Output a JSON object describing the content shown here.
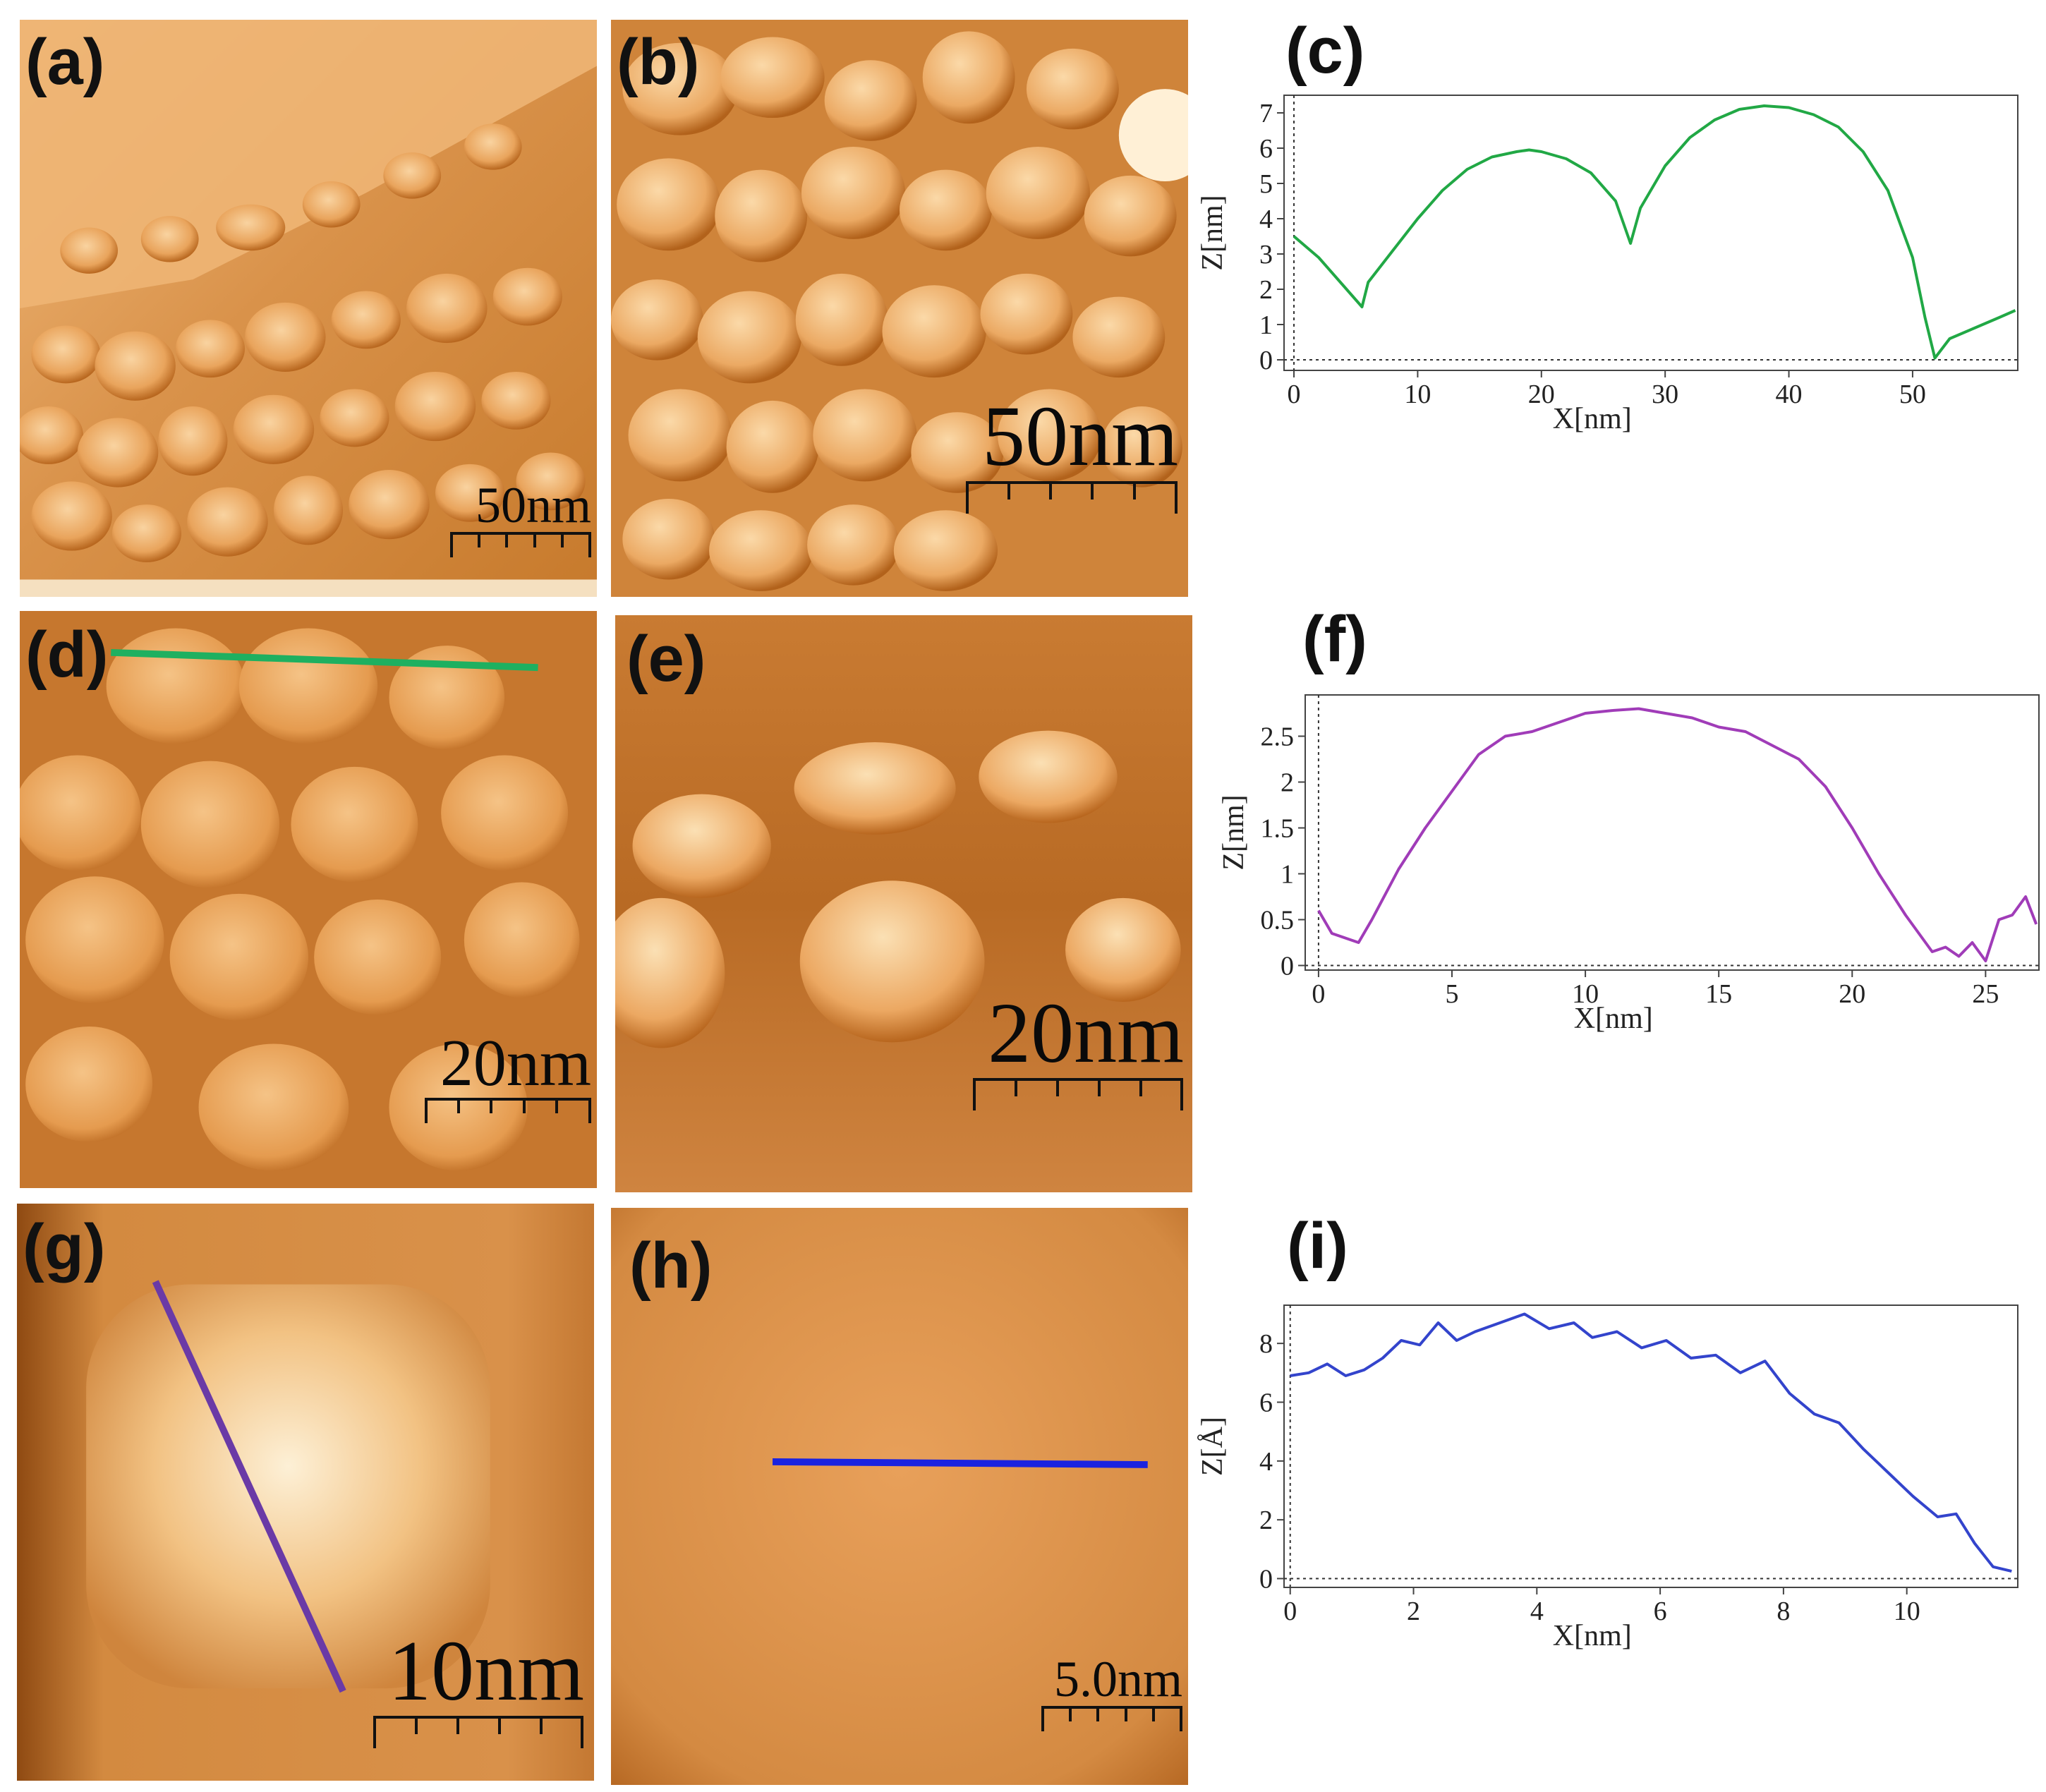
{
  "figure": {
    "panels": [
      {
        "id": "a",
        "label": "(a)",
        "scale_text": "50nm"
      },
      {
        "id": "b",
        "label": "(b)",
        "scale_text": "50nm"
      },
      {
        "id": "d",
        "label": "(d)",
        "scale_text": "20nm",
        "profile_line_color": "#1eb060"
      },
      {
        "id": "e",
        "label": "(e)",
        "scale_text": "20nm"
      },
      {
        "id": "g",
        "label": "(g)",
        "scale_text": "10nm",
        "profile_line_color": "#6a3aa6"
      },
      {
        "id": "h",
        "label": "(h)",
        "scale_text": "5.0nm",
        "profile_line_color": "#1a23e0"
      }
    ],
    "afm_colors": {
      "dark": "#8a4a0f",
      "mid": "#d68a3c",
      "light": "#f5c98f",
      "bright": "#fff2da"
    }
  },
  "chart_data": [
    {
      "id": "c",
      "label": "(c)",
      "type": "line",
      "color": "#21a845",
      "xlabel": "X[nm]",
      "ylabel": "Z[nm]",
      "xlim": [
        -0.8,
        58.5
      ],
      "ylim": [
        -0.3,
        7.5
      ],
      "xticks": [
        0,
        10,
        20,
        30,
        40,
        50
      ],
      "yticks": [
        0,
        1,
        2,
        3,
        4,
        5,
        6,
        7
      ],
      "x": [
        0,
        2,
        4,
        5.5,
        6,
        8,
        10,
        12,
        14,
        16,
        18,
        19,
        20,
        22,
        24,
        26,
        27.2,
        28,
        30,
        32,
        34,
        36,
        38,
        40,
        42,
        44,
        46,
        48,
        50,
        51,
        51.8,
        53,
        55,
        57,
        58.3
      ],
      "y": [
        3.5,
        2.9,
        2.1,
        1.5,
        2.2,
        3.1,
        4.0,
        4.8,
        5.4,
        5.75,
        5.9,
        5.95,
        5.9,
        5.7,
        5.3,
        4.5,
        3.3,
        4.3,
        5.5,
        6.3,
        6.8,
        7.1,
        7.2,
        7.15,
        6.95,
        6.6,
        5.9,
        4.8,
        2.9,
        1.2,
        0.05,
        0.6,
        0.9,
        1.2,
        1.4
      ]
    },
    {
      "id": "f",
      "label": "(f)",
      "type": "line",
      "color": "#a03cb8",
      "xlabel": "X[nm]",
      "ylabel": "Z[nm]",
      "xlim": [
        -0.5,
        27
      ],
      "ylim": [
        -0.05,
        2.95
      ],
      "xticks": [
        0,
        5,
        10,
        15,
        20,
        25
      ],
      "yticks": [
        0,
        0.5,
        1,
        1.5,
        2,
        2.5
      ],
      "ytick_labels": [
        "0",
        "0.5",
        "1",
        "1.5",
        "2",
        "2.5"
      ],
      "x": [
        0,
        0.5,
        1,
        1.5,
        2,
        3,
        4,
        5,
        6,
        7,
        8,
        9,
        10,
        11,
        12,
        13,
        14,
        15,
        16,
        17,
        18,
        19,
        20,
        21,
        22,
        22.5,
        23,
        23.5,
        24,
        24.5,
        25,
        25.5,
        26,
        26.5,
        26.9
      ],
      "y": [
        0.6,
        0.35,
        0.3,
        0.25,
        0.5,
        1.05,
        1.5,
        1.9,
        2.3,
        2.5,
        2.55,
        2.65,
        2.75,
        2.78,
        2.8,
        2.75,
        2.7,
        2.6,
        2.55,
        2.4,
        2.25,
        1.95,
        1.5,
        1.0,
        0.55,
        0.35,
        0.15,
        0.2,
        0.1,
        0.25,
        0.05,
        0.5,
        0.55,
        0.75,
        0.45
      ]
    },
    {
      "id": "i",
      "label": "(i)",
      "type": "line",
      "color": "#3344cc",
      "xlabel": "X[nm]",
      "ylabel": "Z[Å]",
      "xlim": [
        -0.1,
        11.8
      ],
      "ylim": [
        -0.3,
        9.3
      ],
      "xticks": [
        0,
        2,
        4,
        6,
        8,
        10
      ],
      "yticks": [
        0,
        2,
        4,
        6,
        8
      ],
      "x": [
        0,
        0.3,
        0.6,
        0.9,
        1.2,
        1.5,
        1.8,
        2.1,
        2.4,
        2.7,
        3.0,
        3.4,
        3.8,
        4.2,
        4.6,
        4.9,
        5.3,
        5.7,
        6.1,
        6.5,
        6.9,
        7.3,
        7.7,
        8.1,
        8.5,
        8.9,
        9.3,
        9.7,
        10.1,
        10.5,
        10.8,
        11.1,
        11.4,
        11.7
      ],
      "y": [
        6.9,
        7.0,
        7.3,
        6.9,
        7.1,
        7.5,
        8.1,
        7.95,
        8.7,
        8.1,
        8.4,
        8.7,
        9.0,
        8.5,
        8.7,
        8.2,
        8.4,
        7.85,
        8.1,
        7.5,
        7.6,
        7.0,
        7.4,
        6.3,
        5.6,
        5.3,
        4.4,
        3.6,
        2.8,
        2.1,
        2.2,
        1.2,
        0.4,
        0.25
      ]
    }
  ]
}
